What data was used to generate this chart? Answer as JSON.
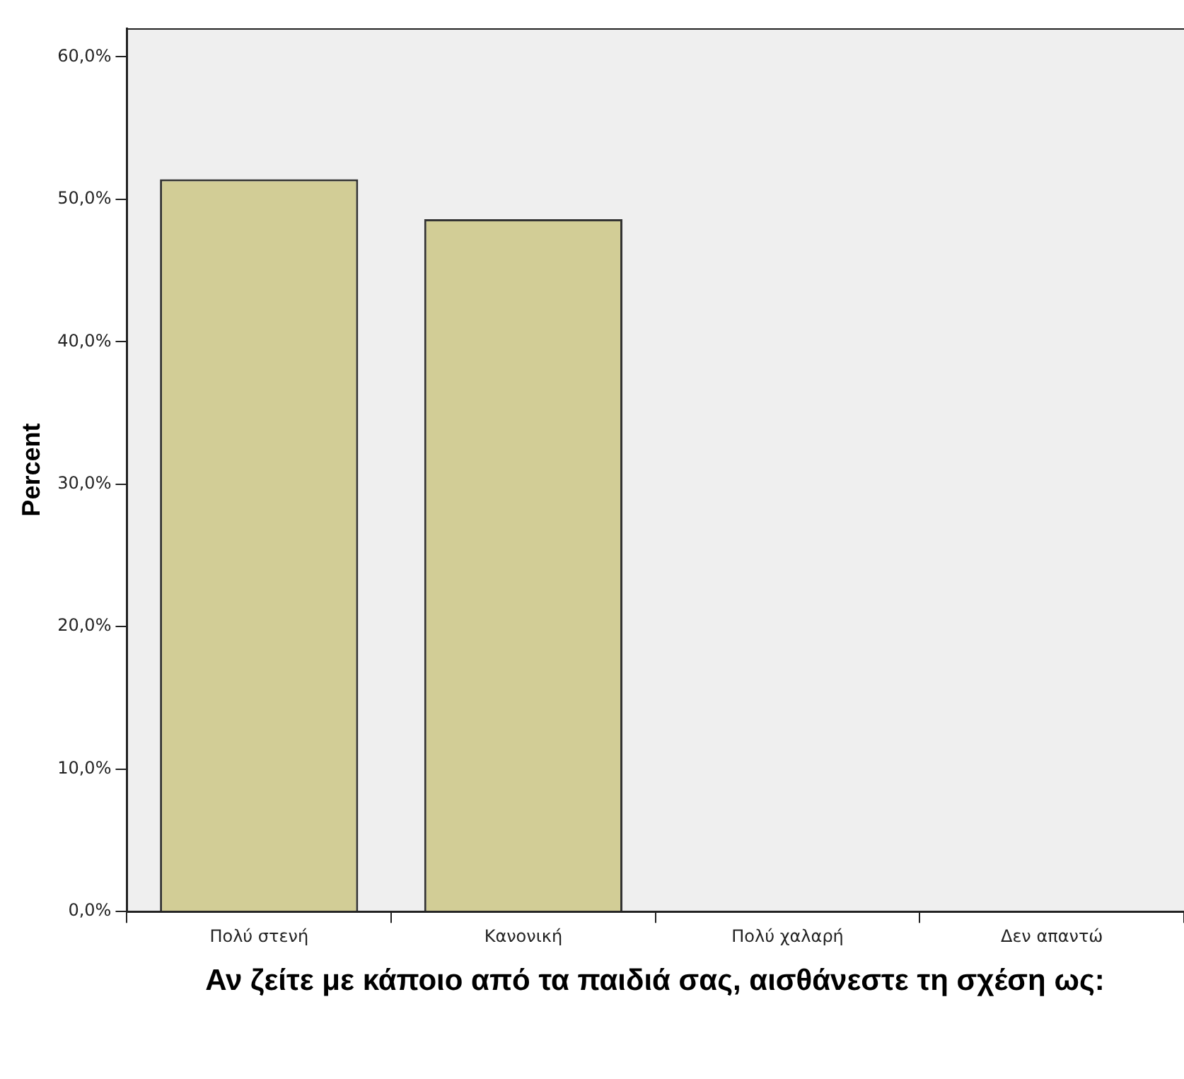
{
  "chart_data": {
    "type": "bar",
    "xlabel": "Αν ζείτε με κάποιο από τα παιδιά σας, αισθάνεστε τη σχέση ως:",
    "ylabel": "Percent",
    "categories": [
      "Πολύ στενή",
      "Κανονική",
      "Πολύ χαλαρή",
      "Δεν απαντώ"
    ],
    "values": [
      51.4,
      48.6,
      0,
      0
    ],
    "color": "#d2cd96",
    "ylim": [
      0,
      62
    ],
    "yticks": [
      {
        "value": 0,
        "label": "0,0%"
      },
      {
        "value": 10,
        "label": "10,0%"
      },
      {
        "value": 20,
        "label": "20,0%"
      },
      {
        "value": 30,
        "label": "30,0%"
      },
      {
        "value": 40,
        "label": "40,0%"
      },
      {
        "value": 50,
        "label": "50,0%"
      },
      {
        "value": 60,
        "label": "60,0%"
      }
    ]
  }
}
